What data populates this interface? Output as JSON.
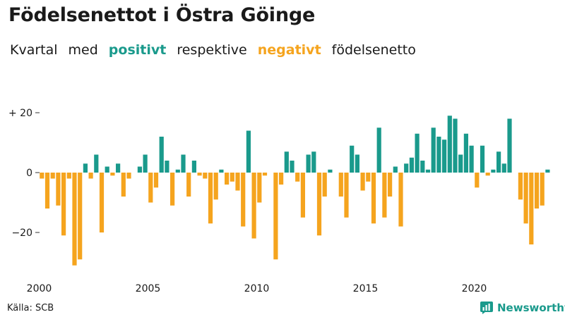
{
  "title": "Födelsenettot i Östra Göinge",
  "subtitle": {
    "part1": "Kvartal",
    "part2": "med",
    "positive_word": "positivt",
    "part3": "respektive",
    "negative_word": "negativt",
    "part4": "födelsenetto"
  },
  "source": "Källa: SCB",
  "brand": {
    "name": "Newsworthy",
    "icon": "newsworthy-logo-icon"
  },
  "colors": {
    "positive": "#1a9a8c",
    "negative": "#f5a41e",
    "text": "#1a1a1a"
  },
  "chart_data": {
    "type": "bar",
    "title": "Födelsenettot i Östra Göinge",
    "xlabel": "",
    "ylabel": "",
    "grid": false,
    "legend": "none",
    "ylim": [
      -32,
      22
    ],
    "y_ticks": [
      {
        "value": 20,
        "label": "+ 20"
      },
      {
        "value": 0,
        "label": "0"
      },
      {
        "value": -20,
        "label": "−20"
      }
    ],
    "x_ticks": [
      "2000",
      "2005",
      "2010",
      "2015",
      "2020"
    ],
    "start_year": 2000,
    "quarters_per_year": 4,
    "values": [
      -2,
      -12,
      -2,
      -11,
      -21,
      -2,
      -31,
      -29,
      3,
      -2,
      6,
      -20,
      2,
      -1,
      3,
      -8,
      -2,
      0,
      2,
      6,
      -10,
      -5,
      12,
      4,
      -11,
      1,
      6,
      -8,
      4,
      -1,
      -2,
      -17,
      -9,
      1,
      -4,
      -3,
      -6,
      -18,
      14,
      -22,
      -10,
      -1,
      0,
      -29,
      -4,
      7,
      4,
      -3,
      -15,
      6,
      7,
      -21,
      -8,
      1,
      0,
      -8,
      -15,
      9,
      6,
      -6,
      -3,
      -17,
      15,
      -15,
      -8,
      2,
      -18,
      3,
      5,
      13,
      4,
      1,
      15,
      12,
      11,
      19,
      18,
      6,
      13,
      9,
      -5,
      9,
      -1,
      1,
      7,
      3,
      18,
      0,
      -9,
      -17,
      -24,
      -12,
      -11,
      1
    ]
  }
}
